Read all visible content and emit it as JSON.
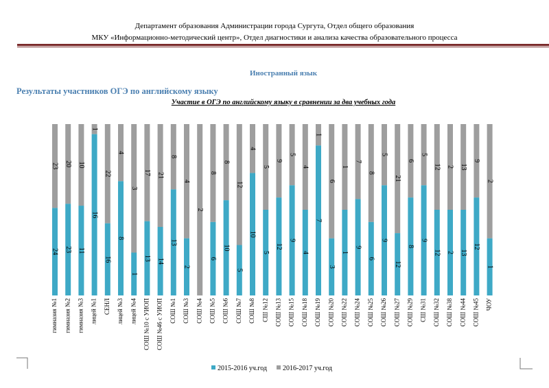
{
  "header": {
    "line1": "Департамент образования Администрации города Сургута, Отдел общего образования",
    "line2": "МКУ «Информационно-методический центр», Отдел диагностики и анализа качества образовательного процесса"
  },
  "subject": "Иностранный язык",
  "section_title": "Результаты участников ОГЭ по английскому языку",
  "colors": {
    "series1": "#3ea9c6",
    "series2": "#9e9e9e",
    "rule": "#7a2a2a",
    "heading": "#4a7fb0"
  },
  "chart_data": {
    "type": "bar",
    "stacked": "100%",
    "title": "Участие в ОГЭ по английскому языку в сравнении за два учебных года",
    "legend_position": "bottom",
    "categories": [
      "гимназия №1",
      "гимназия №2",
      "гимназия №3",
      "лицей №1",
      "СЕНЛ",
      "лицей №3",
      "лицей №4",
      "СОШ №10 с УИОП",
      "СОШ №46 с УИОП",
      "СОШ №1",
      "СОШ №3",
      "СОШ №4",
      "СОШ №5",
      "СОШ №6",
      "СОШ №7",
      "СОШ №8",
      "СШ №12",
      "СОШ №13",
      "СОШ №15",
      "СОШ №18",
      "СОШ №19",
      "СОШ №20",
      "СОШ №22",
      "СОШ №24",
      "СОШ №25",
      "СОШ №26",
      "СОШ №27",
      "СОШ №29",
      "СШ №31",
      "СОШ №32",
      "СОШ №38",
      "СОШ №44",
      "СОШ №45",
      "ЧОУ"
    ],
    "series": [
      {
        "name": "2015-2016 уч.год",
        "values": [
          24,
          23,
          11,
          16,
          16,
          8,
          1,
          13,
          14,
          13,
          2,
          0,
          6,
          10,
          5,
          10,
          5,
          12,
          9,
          4,
          7,
          3,
          1,
          9,
          6,
          9,
          12,
          8,
          9,
          12,
          2,
          13,
          12,
          1
        ]
      },
      {
        "name": "2016-2017 уч.год",
        "values": [
          23,
          20,
          10,
          1,
          22,
          4,
          3,
          17,
          21,
          8,
          4,
          2,
          8,
          8,
          12,
          4,
          5,
          9,
          5,
          4,
          1,
          6,
          1,
          7,
          8,
          5,
          21,
          6,
          5,
          12,
          2,
          13,
          9,
          2
        ]
      }
    ]
  }
}
